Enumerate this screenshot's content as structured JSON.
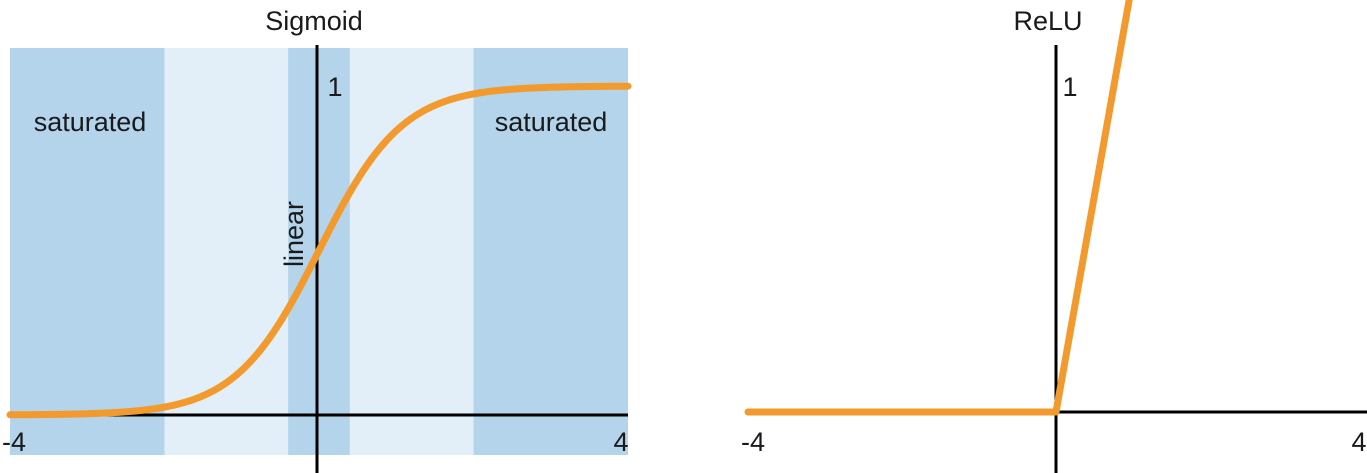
{
  "chart_data": [
    {
      "type": "line",
      "title": "Sigmoid",
      "function": "sigmoid",
      "xlim": [
        -4,
        4
      ],
      "ylim": [
        0,
        1
      ],
      "x_tick_labels": [
        "-4",
        "4"
      ],
      "y_tick_label": "1",
      "regions": [
        {
          "name": "saturated",
          "x_range": [
            -4,
            -2
          ]
        },
        {
          "name": "",
          "x_range": [
            -2,
            -0.4
          ]
        },
        {
          "name": "linear",
          "x_range": [
            -0.4,
            0.4
          ]
        },
        {
          "name": "",
          "x_range": [
            0.4,
            2
          ]
        },
        {
          "name": "saturated",
          "x_range": [
            2,
            4
          ]
        }
      ],
      "region_labels": {
        "left": "saturated",
        "center": "linear",
        "right": "saturated"
      },
      "colors": {
        "dark_region": "#b3d4ea",
        "light_region": "#e2eff8",
        "curve": "#f29a2e"
      }
    },
    {
      "type": "line",
      "title": "ReLU",
      "function": "relu",
      "xlim": [
        -4,
        4
      ],
      "ylim": [
        0,
        1
      ],
      "x_tick_labels": [
        "-4",
        "4"
      ],
      "y_tick_label": "1",
      "colors": {
        "curve": "#f29a2e"
      }
    }
  ]
}
